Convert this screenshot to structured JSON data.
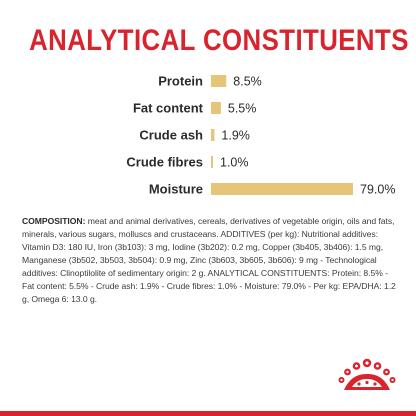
{
  "title": "ANALYTICAL CONSTITUENTS",
  "chart_data": {
    "type": "bar",
    "orientation": "horizontal",
    "categories": [
      "Protein",
      "Fat content",
      "Crude ash",
      "Crude fibres",
      "Moisture"
    ],
    "values": [
      8.5,
      5.5,
      1.9,
      1.0,
      79.0
    ],
    "labels": [
      "8.5%",
      "5.5%",
      "1.9%",
      "1.0%",
      "79.0%"
    ],
    "unit": "%",
    "xlim": [
      0,
      79.0
    ],
    "bar_color": "#e6c478",
    "grid": false,
    "title": "ANALYTICAL CONSTITUENTS"
  },
  "composition": {
    "lead": "COMPOSITION:",
    "text": " meat and animal derivatives, cereals, derivatives of vegetable origin, oils and fats, minerals, various sugars, molluscs and crustaceans. ADDITIVES (per kg): Nutritional additives: Vitamin D3: 180 IU, Iron (3b103): 3 mg, Iodine (3b202): 0.2 mg, Copper (3b405, 3b406): 1.5 mg, Manganese (3b502, 3b503, 3b504): 0.9 mg, Zinc (3b603, 3b605, 3b606): 9 mg - Technological additives: Clinoptilolite of sedimentary origin: 2 g. ANALYTICAL CONSTITUENTS: Protein: 8.5% - Fat content: 5.5% - Crude ash: 1.9% - Crude fibres: 1.0% - Moisture: 79.0% - Per kg: EPA/DHA: 1.2 g, Omega 6: 13.0 g."
  },
  "colors": {
    "brand_red": "#d9232d",
    "bar": "#e6c478",
    "label_text": "#2b2b2b"
  },
  "logo": {
    "icon": "royal-crown-icon"
  }
}
